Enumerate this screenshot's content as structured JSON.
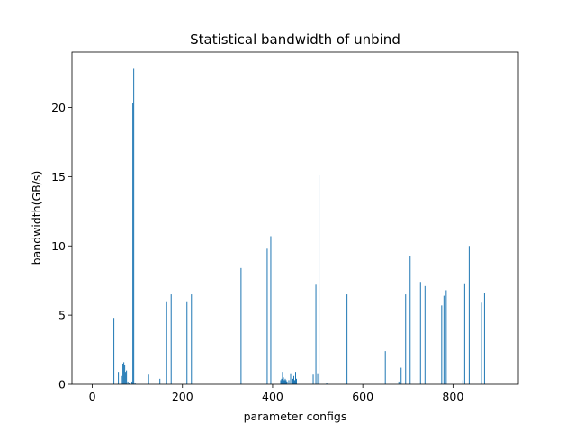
{
  "chart_data": {
    "type": "bar",
    "title": "Statistical bandwidth of unbind",
    "xlabel": "parameter configs",
    "ylabel": "bandwidth(GB/s)",
    "xlim": [
      -45,
      945
    ],
    "ylim": [
      0,
      24
    ],
    "xticks": [
      0,
      200,
      400,
      600,
      800
    ],
    "yticks": [
      0,
      5,
      10,
      15,
      20
    ],
    "color": "#1f77b4",
    "grid": false,
    "x": [
      48,
      58,
      65,
      68,
      70,
      72,
      74,
      76,
      79,
      82,
      88,
      90,
      92,
      95,
      125,
      150,
      165,
      175,
      210,
      220,
      330,
      388,
      396,
      418,
      420,
      422,
      424,
      426,
      428,
      430,
      432,
      436,
      440,
      443,
      445,
      447,
      449,
      451,
      453,
      490,
      496,
      500,
      503,
      520,
      565,
      650,
      680,
      685,
      695,
      705,
      728,
      738,
      775,
      780,
      785,
      822,
      826,
      836,
      863,
      870
    ],
    "values": [
      4.8,
      0.9,
      0.6,
      1.5,
      1.6,
      1.4,
      0.9,
      1.0,
      0.2,
      0.1,
      0.2,
      20.3,
      22.8,
      0.1,
      0.7,
      0.4,
      6.0,
      6.5,
      6.0,
      6.5,
      8.4,
      9.8,
      10.7,
      0.3,
      0.4,
      0.9,
      0.5,
      0.3,
      0.4,
      0.3,
      0.2,
      0.3,
      0.8,
      0.5,
      0.4,
      0.6,
      0.3,
      0.9,
      0.4,
      0.7,
      7.2,
      0.8,
      15.1,
      0.1,
      6.5,
      2.4,
      0.2,
      1.2,
      6.5,
      9.3,
      7.4,
      7.1,
      5.7,
      6.4,
      6.8,
      0.3,
      7.3,
      10.0,
      5.9,
      6.6
    ]
  }
}
